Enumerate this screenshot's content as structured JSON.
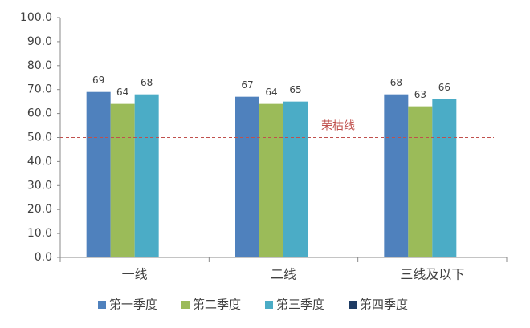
{
  "chart_data": {
    "type": "bar",
    "categories": [
      "一线",
      "二线",
      "三线及以下"
    ],
    "series": [
      {
        "name": "第一季度",
        "color": "#4f81bd",
        "values": [
          69,
          67,
          68
        ]
      },
      {
        "name": "第二季度",
        "color": "#9bbb59",
        "values": [
          64,
          64,
          63
        ]
      },
      {
        "name": "第三季度",
        "color": "#4bacc6",
        "values": [
          68,
          65,
          66
        ]
      },
      {
        "name": "第四季度",
        "color": "#1f3c64",
        "values": [
          null,
          null,
          null
        ]
      }
    ],
    "ylim": [
      0,
      100
    ],
    "yticks": [
      {
        "value": 0,
        "label": "0.0"
      },
      {
        "value": 10,
        "label": "10.0"
      },
      {
        "value": 20,
        "label": "20.0"
      },
      {
        "value": 30,
        "label": "30.0"
      },
      {
        "value": 40,
        "label": "40.0"
      },
      {
        "value": 50,
        "label": "50.0"
      },
      {
        "value": 60,
        "label": "60.0"
      },
      {
        "value": 70,
        "label": "70.0"
      },
      {
        "value": 80,
        "label": "80.0"
      },
      {
        "value": 90,
        "label": "90.0"
      },
      {
        "value": 100,
        "label": "100.0"
      }
    ],
    "reference_line": {
      "value": 50,
      "label": "荣枯线",
      "color": "#c0504d"
    },
    "legend": "bottom"
  }
}
